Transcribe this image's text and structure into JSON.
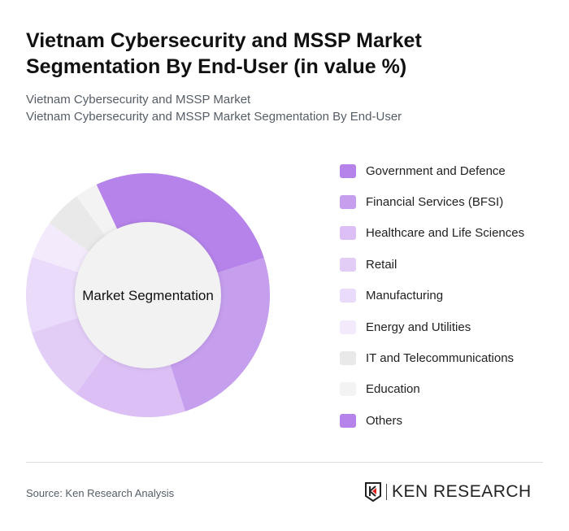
{
  "title": "Vietnam Cybersecurity and MSSP Market Segmentation By End-User (in value %)",
  "subtitle1": "Vietnam Cybersecurity and MSSP Market",
  "subtitle2": "Vietnam Cybersecurity and MSSP Market Segmentation By End-User",
  "source": "Source: Ken Research Analysis",
  "logo_text": "KEN RESEARCH",
  "chart_data": {
    "type": "pie",
    "variant": "donut",
    "center_label": "Market Segmentation",
    "legend_position": "right",
    "categories": [
      "Government and Defence",
      "Financial Services (BFSI)",
      "Healthcare and Life Sciences",
      "Retail",
      "Manufacturing",
      "Energy and Utilities",
      "IT and Telecommunications",
      "Education",
      "Others"
    ],
    "values": [
      27,
      25,
      15,
      10,
      10,
      5,
      5,
      3,
      0
    ],
    "colors": [
      "#b583ea",
      "#c59eee",
      "#dbbff5",
      "#e2cdf7",
      "#e9dbf9",
      "#f3ebfc",
      "#e9e9e9",
      "#f3f3f3",
      "#b583ea"
    ]
  }
}
